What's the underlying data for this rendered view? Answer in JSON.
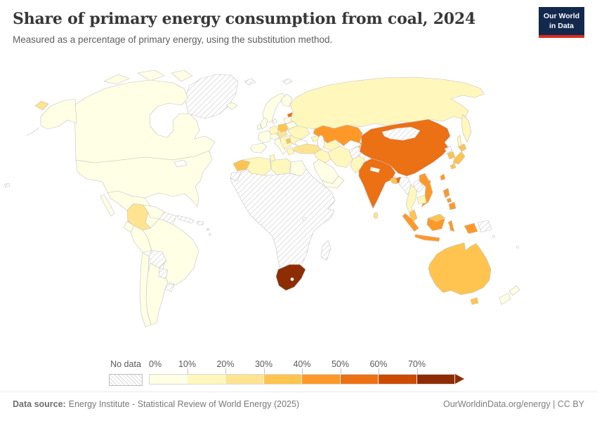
{
  "header": {
    "title": "Share of primary energy consumption from coal, 2024",
    "subtitle": "Measured as a percentage of primary energy, using the substitution method.",
    "logo_line1": "Our World",
    "logo_line2": "in Data",
    "logo_bg": "#12294d",
    "logo_accent": "#dc2d1e"
  },
  "legend": {
    "no_data_label": "No data",
    "bins": [
      {
        "label": "0%",
        "color": "#ffffe5"
      },
      {
        "label": "10%",
        "color": "#fff7bc"
      },
      {
        "label": "20%",
        "color": "#fee391"
      },
      {
        "label": "30%",
        "color": "#fec44f"
      },
      {
        "label": "40%",
        "color": "#fe9929"
      },
      {
        "label": "50%",
        "color": "#ec7014"
      },
      {
        "label": "60%",
        "color": "#cc4c02"
      },
      {
        "label": "70%",
        "color": "#8c2d04"
      }
    ]
  },
  "footer": {
    "source_label": "Data source:",
    "source_text": "Energy Institute - Statistical Review of World Energy (2025)",
    "right_text": "OurWorldinData.org/energy | CC BY"
  },
  "chart_data": {
    "type": "choropleth",
    "title": "Share of primary energy consumption from coal, 2024",
    "unit": "%",
    "legend_position": "bottom",
    "bins": [
      {
        "range": "0-10%",
        "color": "#ffffe5"
      },
      {
        "range": "10-20%",
        "color": "#fff7bc"
      },
      {
        "range": "20-30%",
        "color": "#fee391"
      },
      {
        "range": "30-40%",
        "color": "#fec44f"
      },
      {
        "range": "40-50%",
        "color": "#fe9929"
      },
      {
        "range": "50-60%",
        "color": "#ec7014"
      },
      {
        "range": "60-70%",
        "color": "#cc4c02"
      },
      {
        "range": ">70%",
        "color": "#8c2d04"
      },
      {
        "range": "No data",
        "color": "nodata"
      }
    ],
    "countries": {
      "canada": {
        "range": "0-10%",
        "color": "#ffffe5"
      },
      "united-states": {
        "range": "0-10%",
        "color": "#ffffe5"
      },
      "mexico": {
        "range": "0-10%",
        "color": "#ffffe5"
      },
      "central-america": {
        "range": "0-10%",
        "color": "#ffffe5"
      },
      "iceland": {
        "range": "0-10%",
        "color": "#ffffe5"
      },
      "norway-sweden": {
        "range": "0-10%",
        "color": "#ffffe5"
      },
      "finland": {
        "range": "0-10%",
        "color": "#ffffe5"
      },
      "united-kingdom": {
        "range": "0-10%",
        "color": "#ffffe5"
      },
      "ireland": {
        "range": "0-10%",
        "color": "#ffffe5"
      },
      "denmark": {
        "range": "0-10%",
        "color": "#ffffe5"
      },
      "france": {
        "range": "0-10%",
        "color": "#ffffe5"
      },
      "spain-portugal": {
        "range": "0-10%",
        "color": "#ffffe5"
      },
      "austria-switzerland": {
        "range": "0-10%",
        "color": "#ffffe5"
      },
      "italy": {
        "range": "0-10%",
        "color": "#ffffe5"
      },
      "baltics": {
        "range": "0-10%",
        "color": "#ffffe5"
      },
      "belarus": {
        "range": "0-10%",
        "color": "#ffffe5"
      },
      "venezuela": {
        "range": "0-10%",
        "color": "#ffffe5"
      },
      "ecuador": {
        "range": "0-10%",
        "color": "#ffffe5"
      },
      "peru": {
        "range": "0-10%",
        "color": "#ffffe5"
      },
      "brazil": {
        "range": "0-10%",
        "color": "#ffffe5"
      },
      "argentina": {
        "range": "0-10%",
        "color": "#ffffe5"
      },
      "chile": {
        "range": "0-10%",
        "color": "#ffffe5"
      },
      "saudi-arabia": {
        "range": "0-10%",
        "color": "#ffffe5"
      },
      "yemen-oman": {
        "range": "0-10%",
        "color": "#ffffe5"
      },
      "egypt": {
        "range": "0-10%",
        "color": "#ffffe5"
      },
      "nepal": {
        "range": "0-10%",
        "color": "#ffffe5"
      },
      "new-zealand": {
        "range": "0-10%",
        "color": "#ffffe5"
      },
      "germany": {
        "range": "10-20%",
        "color": "#fff7bc"
      },
      "ukraine": {
        "range": "10-20%",
        "color": "#fff7bc"
      },
      "romania-bulgaria": {
        "range": "10-20%",
        "color": "#fff7bc"
      },
      "balkans": {
        "range": "10-20%",
        "color": "#fff7bc"
      },
      "greece": {
        "range": "10-20%",
        "color": "#fff7bc"
      },
      "algeria": {
        "range": "10-20%",
        "color": "#fff7bc"
      },
      "tunisia": {
        "range": "10-20%",
        "color": "#fff7bc"
      },
      "libya": {
        "range": "10-20%",
        "color": "#fff7bc"
      },
      "russia": {
        "range": "10-20%",
        "color": "#fff7bc"
      },
      "caucasus": {
        "range": "10-20%",
        "color": "#fff7bc"
      },
      "syria-iraq": {
        "range": "10-20%",
        "color": "#fff7bc"
      },
      "iran": {
        "range": "10-20%",
        "color": "#fff7bc"
      },
      "turkmenistan-uzbekistan": {
        "range": "10-20%",
        "color": "#fff7bc"
      },
      "pakistan": {
        "range": "10-20%",
        "color": "#fff7bc"
      },
      "thailand": {
        "range": "10-20%",
        "color": "#fff7bc"
      },
      "cambodia": {
        "range": "10-20%",
        "color": "#fff7bc"
      },
      "colombia": {
        "range": "20-30%",
        "color": "#fee391"
      },
      "czechia-slovakia": {
        "range": "20-30%",
        "color": "#fee391"
      },
      "turkey": {
        "range": "20-30%",
        "color": "#fee391"
      },
      "sri-lanka": {
        "range": "20-30%",
        "color": "#fee391"
      },
      "chukotka": {
        "range": "20-30%",
        "color": "#fee391"
      },
      "poland": {
        "range": "30-40%",
        "color": "#fec44f"
      },
      "serbia": {
        "range": "30-40%",
        "color": "#fec44f"
      },
      "morocco": {
        "range": "30-40%",
        "color": "#fec44f"
      },
      "bangladesh": {
        "range": "30-40%",
        "color": "#fec44f"
      },
      "malaysia": {
        "range": "30-40%",
        "color": "#fec44f"
      },
      "australia": {
        "range": "30-40%",
        "color": "#fec44f"
      },
      "tajikistan": {
        "range": "30-40%",
        "color": "#fec44f"
      },
      "japan": {
        "range": "30-40%",
        "color": "#fec44f"
      },
      "south-korea": {
        "range": "30-40%",
        "color": "#fec44f"
      },
      "kazakhstan": {
        "range": "40-50%",
        "color": "#fe9929"
      },
      "kyrgyzstan": {
        "range": "40-50%",
        "color": "#fe9929"
      },
      "vietnam": {
        "range": "40-50%",
        "color": "#fe9929"
      },
      "taiwan": {
        "range": "40-50%",
        "color": "#fe9929"
      },
      "philippines": {
        "range": "40-50%",
        "color": "#fe9929"
      },
      "indonesia": {
        "range": "40-50%",
        "color": "#fe9929"
      },
      "china": {
        "range": "50-60%",
        "color": "#ec7014"
      },
      "india": {
        "range": "50-60%",
        "color": "#ec7014"
      },
      "estonia": {
        "range": "50-60%",
        "color": "#ec7014"
      },
      "south-africa": {
        "range": ">70%",
        "color": "#8c2d04"
      },
      "greenland": {
        "range": "No data",
        "color": "nodata"
      },
      "svalbard": {
        "range": "No data",
        "color": "nodata"
      },
      "hawaii": {
        "range": "No data",
        "color": "nodata"
      },
      "caribbean": {
        "range": "No data",
        "color": "nodata"
      },
      "central-america-gap": {
        "range": "No data",
        "color": "nodata"
      },
      "guyanas": {
        "range": "No data",
        "color": "nodata"
      },
      "bolivia": {
        "range": "No data",
        "color": "nodata"
      },
      "paraguay": {
        "range": "No data",
        "color": "nodata"
      },
      "uruguay": {
        "range": "No data",
        "color": "nodata"
      },
      "western-sahara": {
        "range": "No data",
        "color": "nodata"
      },
      "sub-saharan-africa": {
        "range": "No data",
        "color": "nodata"
      },
      "madagascar": {
        "range": "No data",
        "color": "nodata"
      },
      "mongolia": {
        "range": "No data",
        "color": "nodata"
      },
      "north-korea": {
        "range": "No data",
        "color": "nodata"
      },
      "myanmar": {
        "range": "No data",
        "color": "nodata"
      },
      "laos": {
        "range": "No data",
        "color": "nodata"
      },
      "afghanistan": {
        "range": "No data",
        "color": "nodata"
      },
      "papua-new-guinea": {
        "range": "No data",
        "color": "nodata"
      }
    }
  }
}
